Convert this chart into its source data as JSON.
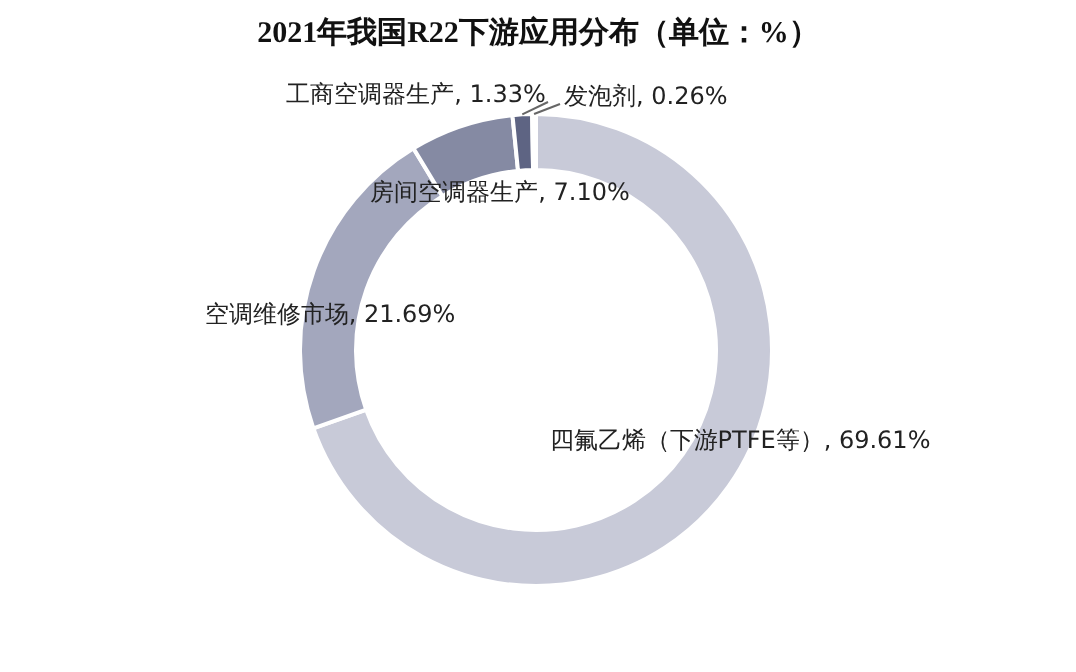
{
  "chart_data": {
    "type": "donut",
    "title": "2021年我国R22下游应用分布（单位：%）",
    "categories": [
      "四氟乙烯（下游PTFE等）",
      "空调维修市场",
      "房间空调器生产",
      "工商空调器生产",
      "发泡剂"
    ],
    "values": [
      69.61,
      21.69,
      7.1,
      1.33,
      0.26
    ],
    "value_labels": [
      "69.61%",
      "21.69%",
      "7.10%",
      "1.33%",
      "0.26%"
    ],
    "colors": [
      "#c8cad8",
      "#a3a7bd",
      "#858aa3",
      "#5e6483",
      "#a9adc2"
    ]
  }
}
